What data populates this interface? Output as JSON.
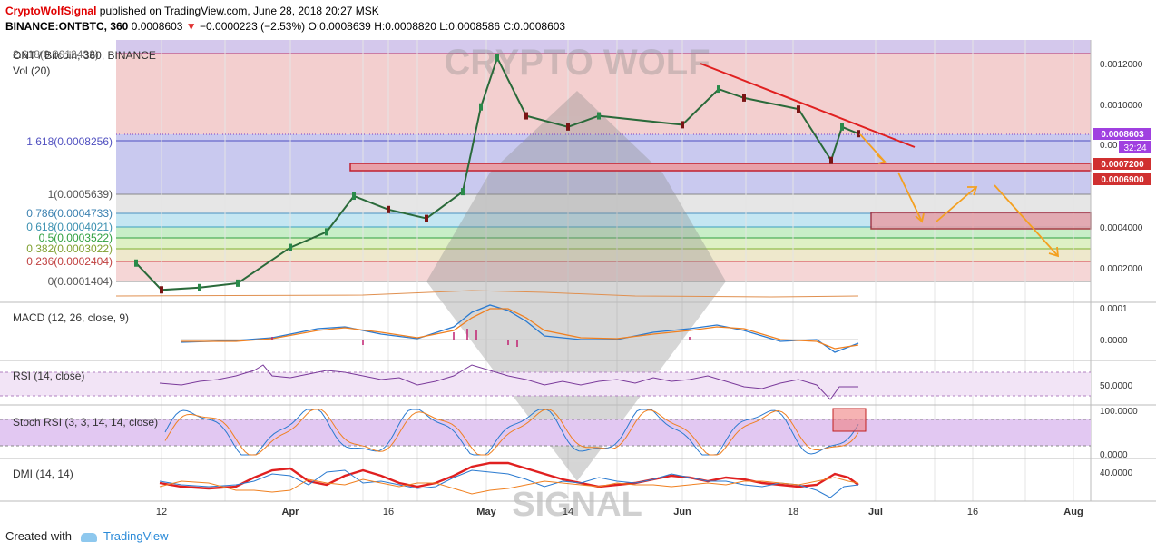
{
  "header": {
    "brand": "CryptoWolfSignal",
    "published": "published on TradingView.com, June 28, 2018 20:27 MSK",
    "symbol_line": "BINANCE:ONTBTC, 360",
    "last_price": "0.0008603",
    "down_arrow": "▼",
    "change": "−0.0000223 (−2.53%)",
    "open": "O:0.0008639",
    "high": "H:0.0008820",
    "low": "L:0.0008586",
    "close": "C:0.0008603"
  },
  "main_pane": {
    "title": "ONT / Bitcoin, 360, BINANCE",
    "vol_label": "Vol (20)",
    "top_fib_label": "2.618(0.0012432)"
  },
  "watermark": {
    "top_text": "CRYPTO WOLF",
    "bottom_text": "SIGNAL"
  },
  "price_axis": {
    "ticks": [
      "0.0012000",
      "0.0010000",
      "0.0004000",
      "0.0002000"
    ],
    "current_price": "0.0008603",
    "current_price_partial": "0.00",
    "countdown": "32:24",
    "level_1": "0.0007200",
    "level_2": "0.0006900"
  },
  "macd": {
    "label": "MACD (12, 26, close, 9)",
    "ticks": [
      "0.0001",
      "0.0000"
    ]
  },
  "rsi": {
    "label": "RSI (14, close)",
    "ticks": [
      "50.0000"
    ]
  },
  "stoch": {
    "label": "Stoch RSI (3, 3, 14, 14, close)",
    "ticks": [
      "100.0000",
      "0.0000"
    ]
  },
  "dmi": {
    "label": "DMI (14, 14)",
    "ticks": [
      "40.0000"
    ]
  },
  "time_axis": {
    "ticks": [
      "12",
      "Apr",
      "16",
      "May",
      "14",
      "Jun",
      "18",
      "Jul",
      "16",
      "Aug"
    ]
  },
  "footer": {
    "created_with": "Created with",
    "tradingview": "TradingView"
  },
  "colors": {
    "fib_2618": "#b0a0d8",
    "fib_1618_zone": "#f3cfcf",
    "fib_1_zone": "#c8c8ec",
    "fib_0786": "#d8d8d8",
    "fib_0618": "#b4dcec",
    "fib_05": "#b8e8c0",
    "fib_0382": "#d8ecb0",
    "fib_0236": "#f0d8d8",
    "candle_up": "#2a8a4a",
    "candle_down": "#7a1414",
    "trendline": "#e02020",
    "arrow": "#f4a020",
    "macd": "#2a7ad0",
    "signal": "#f08020",
    "rsi": "#7a3a9a",
    "dmi_adx": "#e02020",
    "dmi_plus": "#2a7ad0",
    "dmi_minus": "#f08020",
    "price_tag": "#a040e0",
    "level_tag": "#d03030"
  },
  "chart_data": {
    "type": "line",
    "title": "ONT / Bitcoin, 360, BINANCE",
    "series": [
      {
        "name": "ONT / Bitcoin",
        "x": [
          "Mar 8",
          "Mar 12",
          "Mar 20",
          "Mar 28",
          "Apr 1",
          "Apr 8",
          "Apr 10",
          "Apr 16",
          "Apr 24",
          "Apr 28",
          "May 1",
          "May 2",
          "May 8",
          "May 14",
          "May 20",
          "Jun 1",
          "Jun 5",
          "Jun 10",
          "Jun 18",
          "Jun 22",
          "Jun 24",
          "Jun 28"
        ],
        "values": [
          0.00028,
          0.00016,
          0.00017,
          0.00019,
          0.00035,
          0.00042,
          0.00058,
          0.00052,
          0.00048,
          0.0006,
          0.00098,
          0.0012,
          0.00094,
          0.00089,
          0.00094,
          0.0009,
          0.00106,
          0.00102,
          0.00097,
          0.00074,
          0.00089,
          0.00086
        ]
      }
    ],
    "fib_levels": [
      {
        "ratio": "2.618",
        "value": 0.0012432
      },
      {
        "ratio": "1.618",
        "value": 0.0008256
      },
      {
        "ratio": "1",
        "value": 0.0005639
      },
      {
        "ratio": "0.786",
        "value": 0.0004733
      },
      {
        "ratio": "0.618",
        "value": 0.0004021
      },
      {
        "ratio": "0.5",
        "value": 0.0003522
      },
      {
        "ratio": "0.382",
        "value": 0.0003022
      },
      {
        "ratio": "0.236",
        "value": 0.0002404
      },
      {
        "ratio": "0",
        "value": 0.0001404
      }
    ],
    "support_zones": [
      {
        "from": 0.00069,
        "to": 0.00072
      },
      {
        "from": 0.00039,
        "to": 0.00047
      }
    ],
    "ylim": [
      0.0001,
      0.00128
    ]
  }
}
